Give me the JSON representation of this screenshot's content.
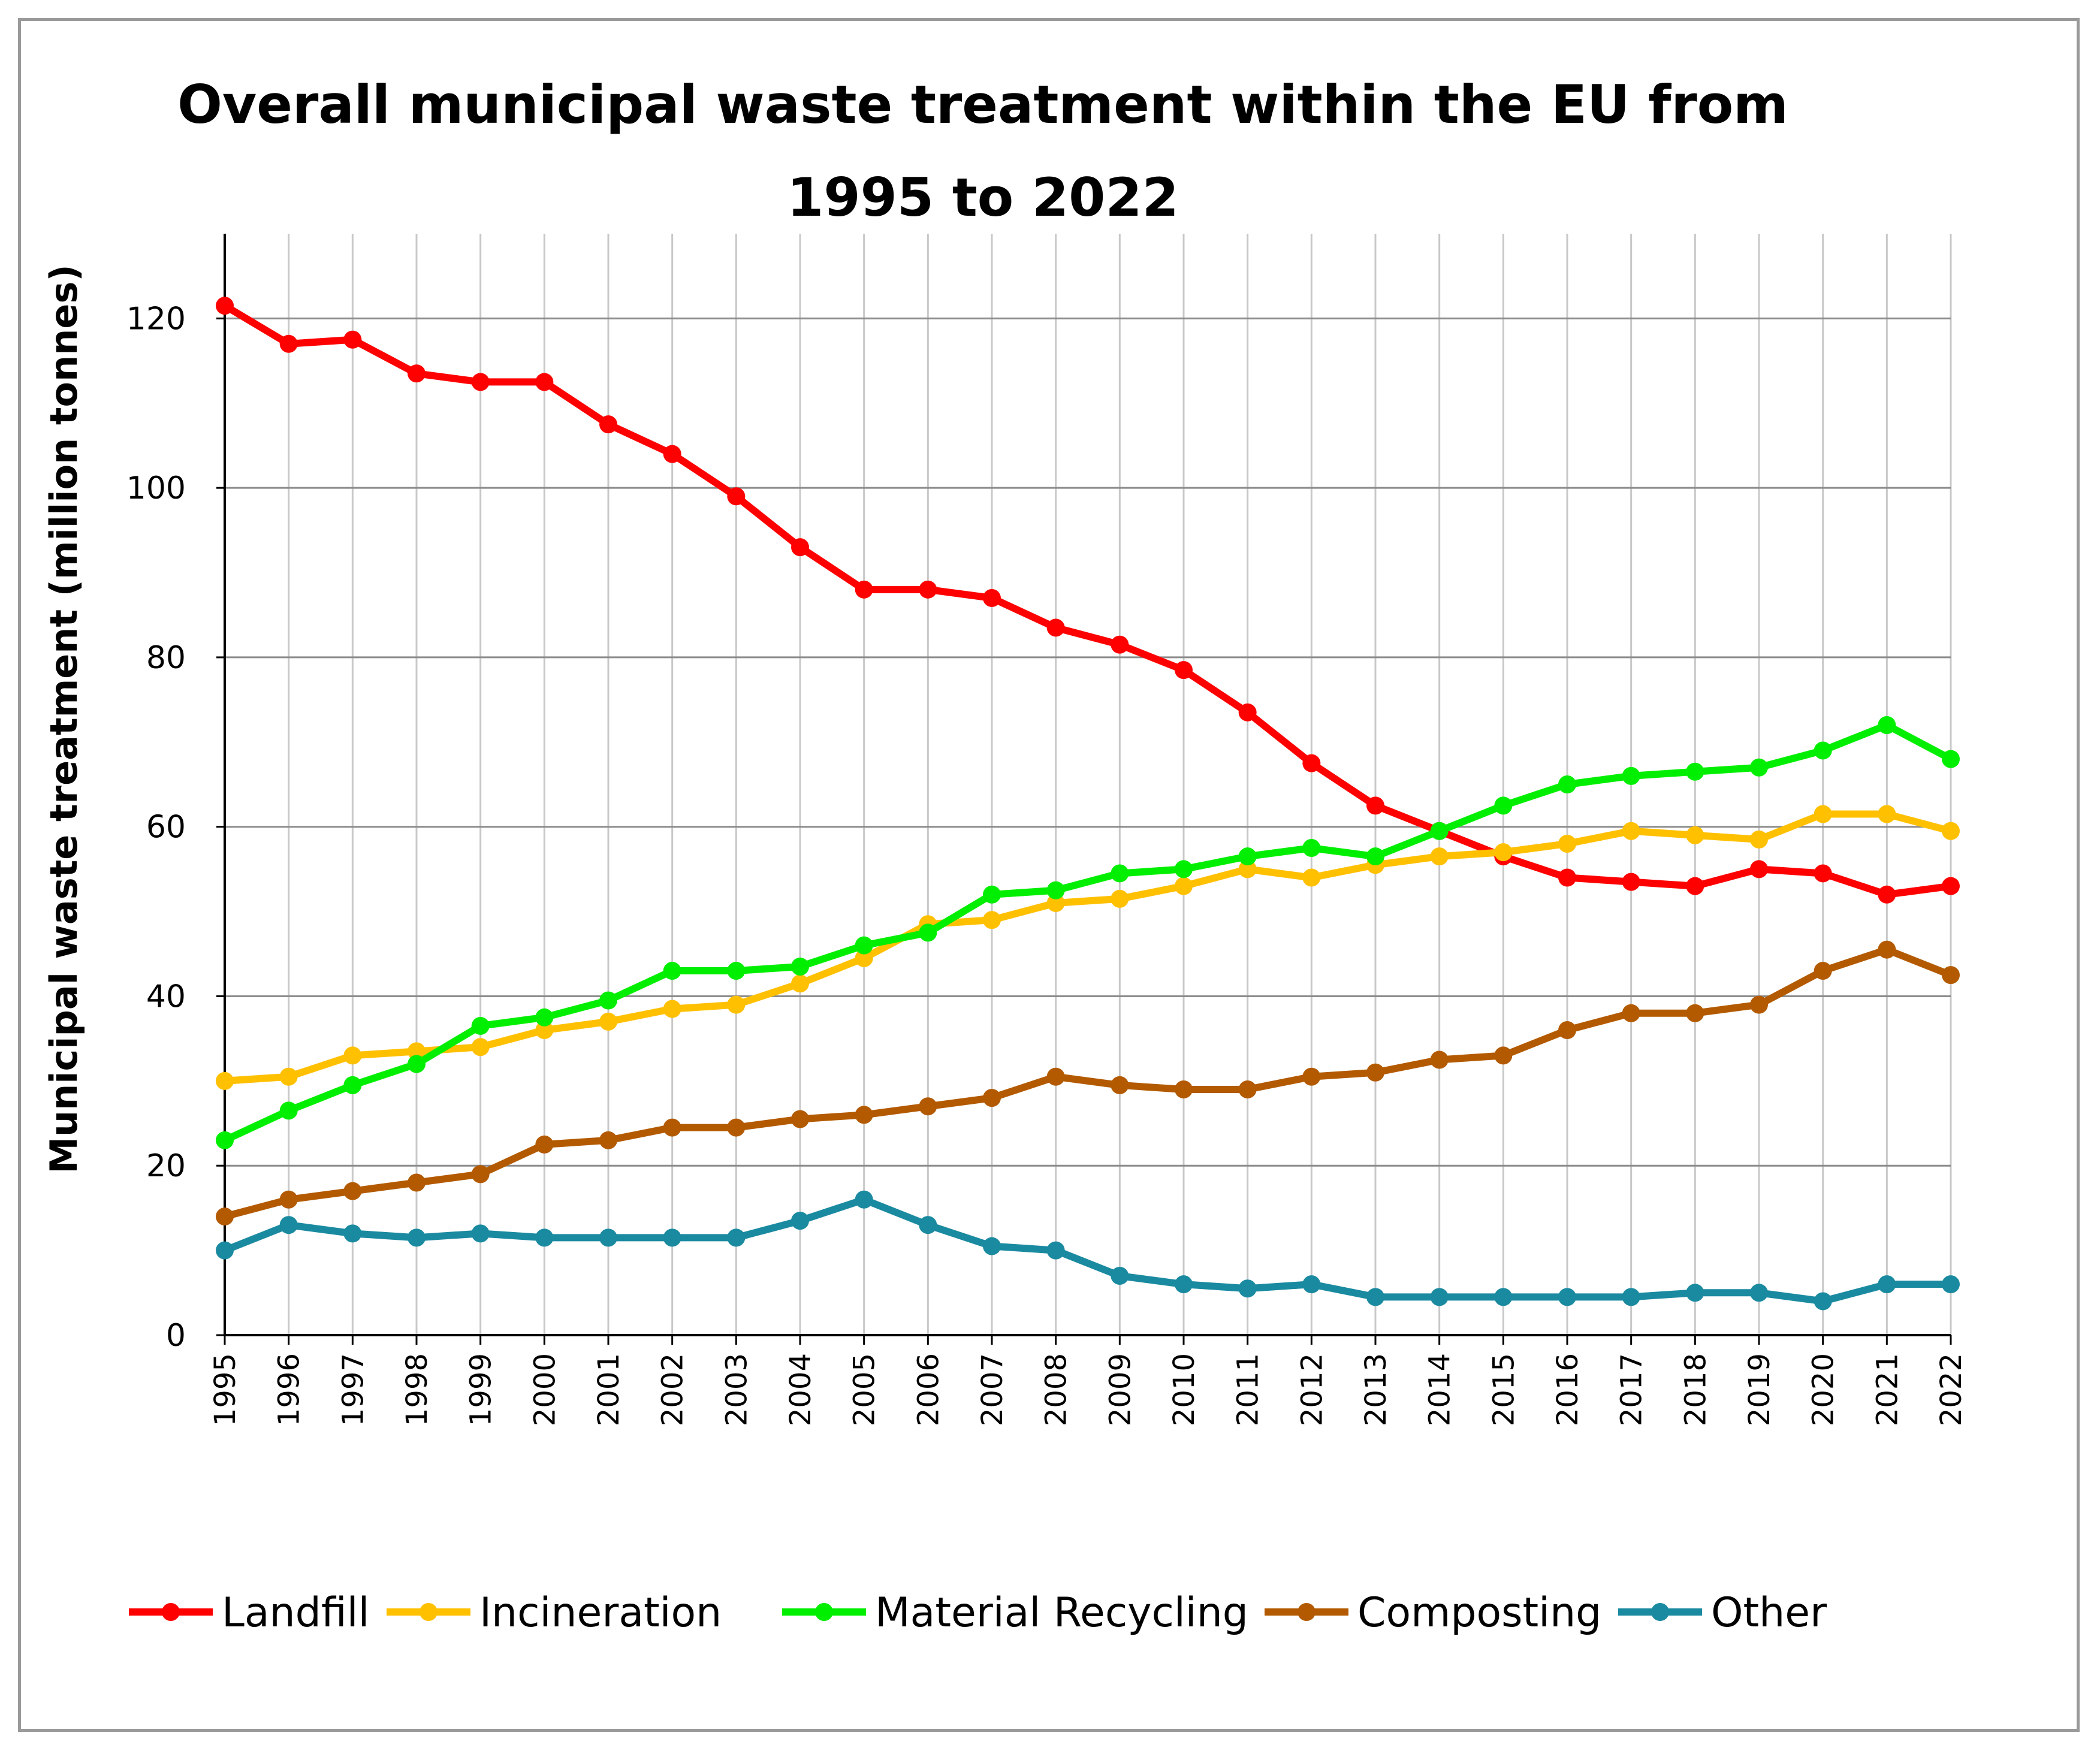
{
  "chart_data": {
    "type": "line",
    "title": "Overall municipal  waste treatment within the EU from",
    "title_line2": "1995 to 2022",
    "xlabel": "",
    "ylabel": "Municipal waste treatment (million tonnes)",
    "ylim": [
      0,
      130
    ],
    "yticks": [
      "0",
      "20",
      "40",
      "60",
      "80",
      "100",
      "120"
    ],
    "ytick_values": [
      0,
      20,
      40,
      60,
      80,
      100,
      120
    ],
    "grid": true,
    "legend_position": "bottom",
    "categories": [
      "1995",
      "1996",
      "1997",
      "1998",
      "1999",
      "2000",
      "2001",
      "2002",
      "2003",
      "2004",
      "2005",
      "2006",
      "2007",
      "2008",
      "2009",
      "2010",
      "2011",
      "2012",
      "2013",
      "2014",
      "2015",
      "2016",
      "2017",
      "2018",
      "2019",
      "2020",
      "2021",
      "2022"
    ],
    "series": [
      {
        "name": "Landfill",
        "color": "#ff0000",
        "values": [
          121.5,
          117,
          117.5,
          113.5,
          112.5,
          112.5,
          107.5,
          104,
          99,
          93,
          88,
          88,
          87,
          83.5,
          81.5,
          78.5,
          73.5,
          67.5,
          62.5,
          59.5,
          56.5,
          54,
          53.5,
          53,
          55,
          54.5,
          52,
          53
        ]
      },
      {
        "name": "Incineration",
        "color": "#ffc000",
        "values": [
          30,
          30.5,
          33,
          33.5,
          34,
          36,
          37,
          38.5,
          39,
          41.5,
          44.5,
          48.5,
          49,
          51,
          51.5,
          53,
          55,
          54,
          55.5,
          56.5,
          57,
          58,
          59.5,
          59,
          58.5,
          61.5,
          61.5,
          59.5
        ]
      },
      {
        "name": "Material Recycling",
        "color": "#00ee00",
        "values": [
          23,
          26.5,
          29.5,
          32,
          36.5,
          37.5,
          39.5,
          43,
          43,
          43.5,
          46,
          47.5,
          52,
          52.5,
          54.5,
          55,
          56.5,
          57.5,
          56.5,
          59.5,
          62.5,
          65,
          66,
          66.5,
          67,
          69,
          72,
          68
        ]
      },
      {
        "name": "Composting",
        "color": "#b35a00",
        "values": [
          14,
          16,
          17,
          18,
          19,
          22.5,
          23,
          24.5,
          24.5,
          25.5,
          26,
          27,
          28,
          30.5,
          29.5,
          29,
          29,
          30.5,
          31,
          32.5,
          33,
          36,
          38,
          38,
          39,
          43,
          45.5,
          42.5
        ]
      },
      {
        "name": "Other",
        "color": "#1a8aa0",
        "values": [
          10,
          13,
          12,
          11.5,
          12,
          11.5,
          11.5,
          11.5,
          11.5,
          13.5,
          16,
          13,
          10.5,
          10,
          7,
          6,
          5.5,
          6,
          4.5,
          4.5,
          4.5,
          4.5,
          4.5,
          5,
          5,
          4,
          6,
          6
        ]
      }
    ]
  }
}
